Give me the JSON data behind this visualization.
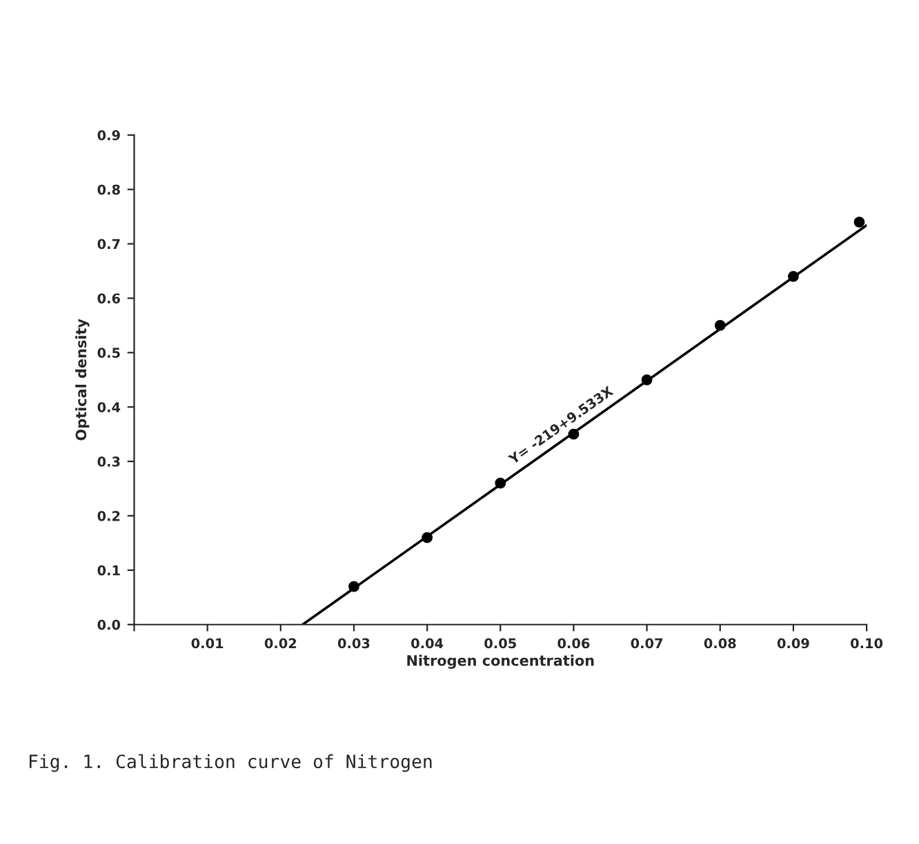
{
  "chart_data": {
    "type": "scatter",
    "xlabel": "Nitrogen concentration",
    "ylabel": "Optical density",
    "xlim": [
      0,
      0.1
    ],
    "ylim": [
      0,
      0.9
    ],
    "xticks": [
      {
        "value": 0,
        "label": null
      },
      0.01,
      0.02,
      0.03,
      0.04,
      0.05,
      0.06,
      0.07,
      0.08,
      0.09,
      {
        "value": 0.1,
        "label": "0.10"
      }
    ],
    "yticks": [
      {
        "value": 0,
        "label": "0.0"
      },
      0.1,
      0.2,
      0.3,
      0.4,
      0.5,
      0.6,
      0.7,
      0.8,
      0.9
    ],
    "grid": false,
    "legend": false,
    "series": [
      {
        "marker": "circle",
        "color": "#000000",
        "x": [
          0.03,
          0.04,
          0.05,
          0.06,
          0.07,
          0.08,
          0.09,
          0.099
        ],
        "values": [
          0.07,
          0.16,
          0.26,
          0.35,
          0.45,
          0.55,
          0.64,
          0.74
        ]
      },
      {
        "type": "line",
        "color": "#000000",
        "x": [
          0.023,
          0.1
        ],
        "values": [
          0.0,
          0.734
        ],
        "line_style": "solid",
        "marker": "none"
      }
    ],
    "annotations": [
      {
        "text": "Y= -219+9.533X",
        "x": 0.052,
        "y": 0.29
      },
      "Fig. 1. Calibration curve of Nitrogen"
    ]
  }
}
